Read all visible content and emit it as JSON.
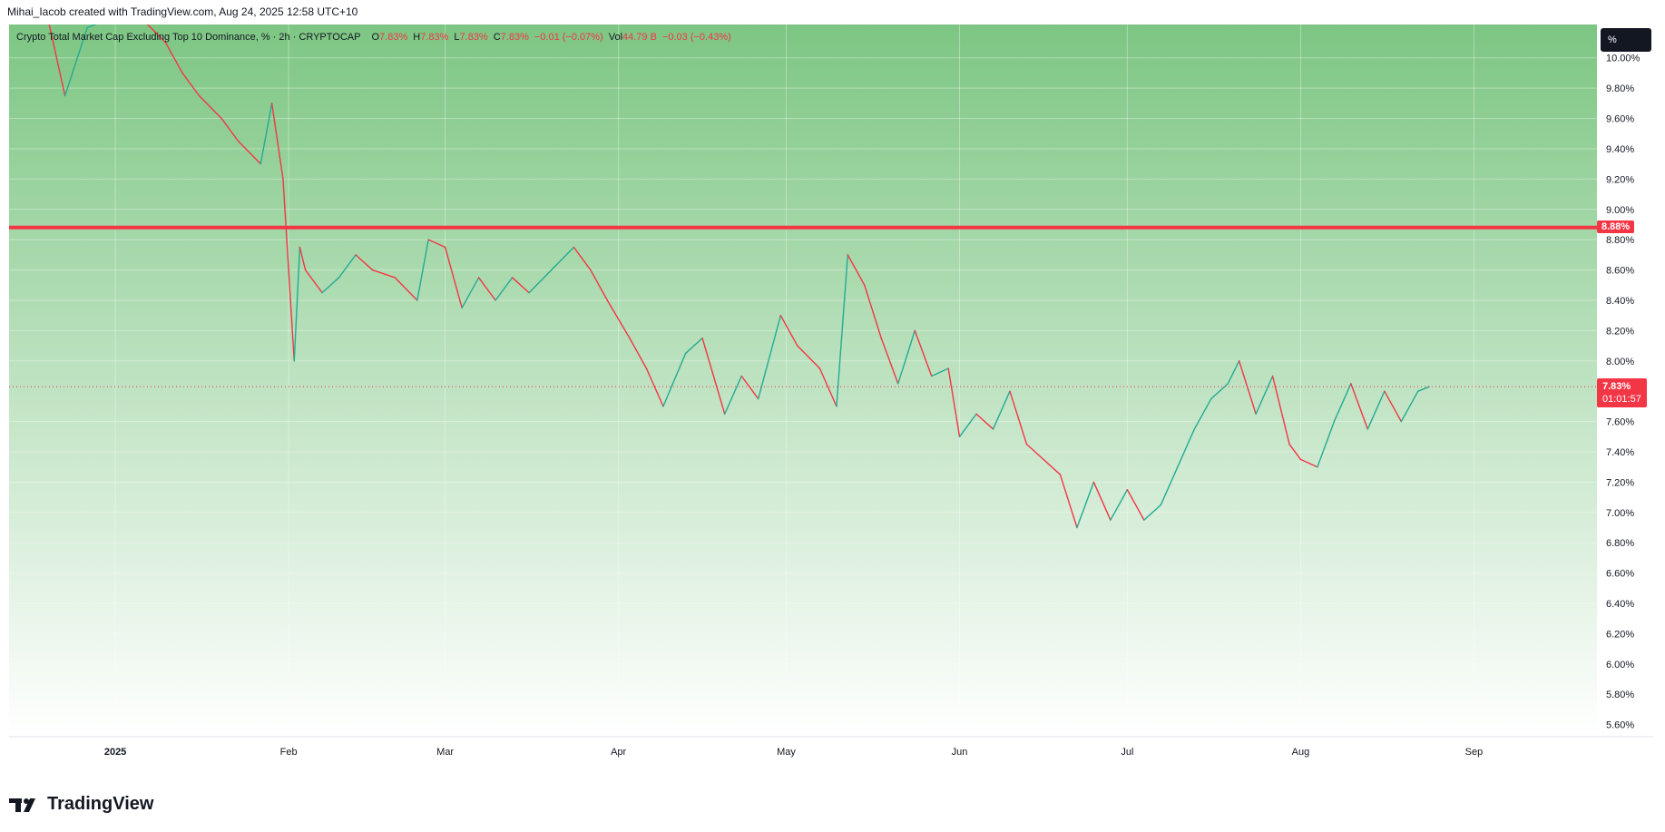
{
  "credit": "Mihai_Iacob created with TradingView.com, Aug 24, 2025 12:58 UTC+10",
  "legend": {
    "symbol": "Crypto Total Market Cap Excluding Top 10 Dominance, % · 2h · CRYPTOCAP",
    "o_label": "O",
    "o_value": "7.83%",
    "h_label": "H",
    "h_value": "7.83%",
    "l_label": "L",
    "l_value": "7.83%",
    "c_label": "C",
    "c_value": "7.83%",
    "change": "−0.01 (−0.07%)",
    "vol_label": "Vol",
    "vol_value": "44.79 B",
    "vol_change": "−0.03 (−0.43%)"
  },
  "unit_button": "%",
  "footer_logo_text": "TradingView",
  "level_tag": "8.88%",
  "last_tag": {
    "price": "7.83%",
    "countdown": "01:01:57"
  },
  "colors": {
    "up": "#22ab94",
    "down": "#f23645",
    "level_line": "#f23645",
    "background_top": "#7dc683",
    "background_bottom": "#ffffff"
  },
  "chart_data": {
    "type": "line",
    "title": "Crypto Total Market Cap Excluding Top 10 Dominance, % · 2h · CRYPTOCAP",
    "xlabel": "",
    "ylabel": "",
    "y_scale": "percent",
    "ylim": [
      5.52,
      10.22
    ],
    "xlim": [
      "2024-12-13",
      "2025-09-23"
    ],
    "grid": true,
    "x_ticks": [
      {
        "date": "2025-01-01",
        "label": "2025"
      },
      {
        "date": "2025-02-01",
        "label": "Feb"
      },
      {
        "date": "2025-03-01",
        "label": "Mar"
      },
      {
        "date": "2025-04-01",
        "label": "Apr"
      },
      {
        "date": "2025-05-01",
        "label": "May"
      },
      {
        "date": "2025-06-01",
        "label": "Jun"
      },
      {
        "date": "2025-07-01",
        "label": "Jul"
      },
      {
        "date": "2025-08-01",
        "label": "Aug"
      },
      {
        "date": "2025-09-01",
        "label": "Sep"
      }
    ],
    "y_ticks": [
      {
        "value": 10.0,
        "label": "10.00%"
      },
      {
        "value": 9.8,
        "label": "9.80%"
      },
      {
        "value": 9.6,
        "label": "9.60%"
      },
      {
        "value": 9.4,
        "label": "9.40%"
      },
      {
        "value": 9.2,
        "label": "9.20%"
      },
      {
        "value": 9.0,
        "label": "9.00%"
      },
      {
        "value": 8.8,
        "label": "8.80%"
      },
      {
        "value": 8.6,
        "label": "8.60%"
      },
      {
        "value": 8.4,
        "label": "8.40%"
      },
      {
        "value": 8.2,
        "label": "8.20%"
      },
      {
        "value": 8.0,
        "label": "8.00%"
      },
      {
        "value": 7.6,
        "label": "7.60%"
      },
      {
        "value": 7.4,
        "label": "7.40%"
      },
      {
        "value": 7.2,
        "label": "7.20%"
      },
      {
        "value": 7.0,
        "label": "7.00%"
      },
      {
        "value": 6.8,
        "label": "6.80%"
      },
      {
        "value": 6.6,
        "label": "6.60%"
      },
      {
        "value": 6.4,
        "label": "6.40%"
      },
      {
        "value": 6.2,
        "label": "6.20%"
      },
      {
        "value": 6.0,
        "label": "6.00%"
      },
      {
        "value": 5.8,
        "label": "5.80%"
      },
      {
        "value": 5.6,
        "label": "5.60%"
      }
    ],
    "horizontal_level": 8.88,
    "last_price": 7.83,
    "series": [
      {
        "values_approx": true,
        "x": [
          "2024-12-20",
          "2024-12-23",
          "2024-12-27",
          "2025-01-03",
          "2025-01-06",
          "2025-01-10",
          "2025-01-13",
          "2025-01-16",
          "2025-01-20",
          "2025-01-23",
          "2025-01-27",
          "2025-01-29",
          "2025-01-31",
          "2025-02-01",
          "2025-02-02",
          "2025-02-03",
          "2025-02-04",
          "2025-02-07",
          "2025-02-10",
          "2025-02-13",
          "2025-02-16",
          "2025-02-20",
          "2025-02-24",
          "2025-02-26",
          "2025-03-01",
          "2025-03-04",
          "2025-03-07",
          "2025-03-10",
          "2025-03-13",
          "2025-03-16",
          "2025-03-20",
          "2025-03-24",
          "2025-03-27",
          "2025-03-30",
          "2025-04-03",
          "2025-04-06",
          "2025-04-09",
          "2025-04-13",
          "2025-04-16",
          "2025-04-20",
          "2025-04-23",
          "2025-04-26",
          "2025-04-30",
          "2025-05-03",
          "2025-05-07",
          "2025-05-10",
          "2025-05-12",
          "2025-05-15",
          "2025-05-18",
          "2025-05-21",
          "2025-05-24",
          "2025-05-27",
          "2025-05-30",
          "2025-06-01",
          "2025-06-04",
          "2025-06-07",
          "2025-06-10",
          "2025-06-13",
          "2025-06-16",
          "2025-06-19",
          "2025-06-22",
          "2025-06-25",
          "2025-06-28",
          "2025-07-01",
          "2025-07-04",
          "2025-07-07",
          "2025-07-10",
          "2025-07-13",
          "2025-07-16",
          "2025-07-19",
          "2025-07-21",
          "2025-07-24",
          "2025-07-27",
          "2025-07-30",
          "2025-08-01",
          "2025-08-04",
          "2025-08-07",
          "2025-08-10",
          "2025-08-13",
          "2025-08-16",
          "2025-08-19",
          "2025-08-22",
          "2025-08-24"
        ],
        "values": [
          10.25,
          9.75,
          10.2,
          10.3,
          10.25,
          10.1,
          9.9,
          9.75,
          9.6,
          9.45,
          9.3,
          9.7,
          9.2,
          8.6,
          8.0,
          8.75,
          8.6,
          8.45,
          8.55,
          8.7,
          8.6,
          8.55,
          8.4,
          8.8,
          8.75,
          8.35,
          8.55,
          8.4,
          8.55,
          8.45,
          8.6,
          8.75,
          8.6,
          8.4,
          8.15,
          7.95,
          7.7,
          8.05,
          8.15,
          7.65,
          7.9,
          7.75,
          8.3,
          8.1,
          7.95,
          7.7,
          8.7,
          8.5,
          8.15,
          7.85,
          8.2,
          7.9,
          7.95,
          7.5,
          7.65,
          7.55,
          7.8,
          7.45,
          7.35,
          7.25,
          6.9,
          7.2,
          6.95,
          7.15,
          6.95,
          7.05,
          7.3,
          7.55,
          7.75,
          7.85,
          8.0,
          7.65,
          7.9,
          7.45,
          7.35,
          7.3,
          7.6,
          7.85,
          7.55,
          7.8,
          7.6,
          7.8,
          7.83
        ]
      }
    ]
  }
}
